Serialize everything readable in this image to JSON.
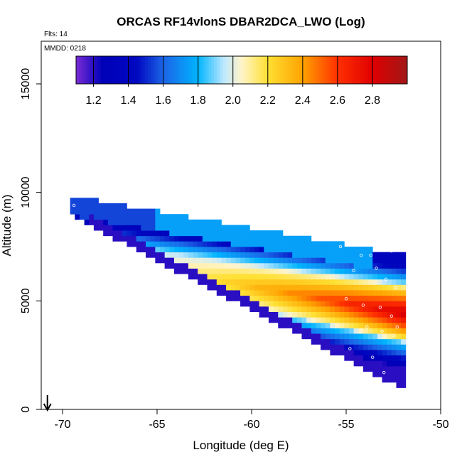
{
  "chart_data": {
    "type": "heatmap",
    "title": "ORCAS RF14vlonS DBAR2DCA_LWO (Log)",
    "note_flights": "Flts: 14",
    "note_date": "MMDD: 0218",
    "xlabel": "Longitude (deg E)",
    "ylabel": "Altitude (m)",
    "xlim": [
      -71,
      -50
    ],
    "ylim": [
      0,
      16500
    ],
    "x_ticks": [
      -70,
      -65,
      -60,
      -55,
      -50
    ],
    "x_tick_labels": [
      "-70",
      "-65",
      "-60",
      "-55",
      "-50"
    ],
    "y_ticks": [
      0,
      5000,
      10000,
      15000
    ],
    "y_tick_labels": [
      "0",
      "5000",
      "10000",
      "15000"
    ],
    "colorbar": {
      "range": [
        1.1,
        3.0
      ],
      "ticks": [
        1.2,
        1.4,
        1.6,
        1.8,
        2.0,
        2.2,
        2.4,
        2.6,
        2.8
      ],
      "tick_labels": [
        "1.2",
        "1.4",
        "1.6",
        "1.8",
        "2.0",
        "2.2",
        "2.4",
        "2.6",
        "2.8"
      ],
      "stops": [
        {
          "v": 1.1,
          "c": "#7a2bd6"
        },
        {
          "v": 1.25,
          "c": "#0000b8"
        },
        {
          "v": 1.45,
          "c": "#0008c0"
        },
        {
          "v": 1.6,
          "c": "#1c64e6"
        },
        {
          "v": 1.8,
          "c": "#00b4ff"
        },
        {
          "v": 1.95,
          "c": "#bfe8ff"
        },
        {
          "v": 2.05,
          "c": "#fff4c8"
        },
        {
          "v": 2.2,
          "c": "#ffe033"
        },
        {
          "v": 2.4,
          "c": "#ffa200"
        },
        {
          "v": 2.6,
          "c": "#ff3000"
        },
        {
          "v": 2.8,
          "c": "#e00000"
        },
        {
          "v": 3.0,
          "c": "#a01818"
        }
      ]
    },
    "domain": {
      "lon_left": -69.6,
      "lon_right": -52.0,
      "top_alt_left": 9700,
      "top_alt_right": 7000,
      "bottom_alt_left": 9000,
      "bottom_alt_right": 1000,
      "cell_lon": 0.25,
      "cell_alt": 250
    },
    "value_model": {
      "high_center_alt_left": 7000,
      "high_center_alt_right": 4300,
      "high_band_halfwidth_m": 1100,
      "high_peak_value_right": 2.85,
      "high_peak_value_left": 1.9,
      "mid_blue_offset_m": 2300,
      "mid_blue_value": 1.35,
      "upper_band_value": 1.75,
      "edge_value": 1.5
    },
    "flight_track_note": "white circle markers near altitude 7000-3000 m at -56 to -52 deg E",
    "north_arrow_lon": -70.8
  }
}
